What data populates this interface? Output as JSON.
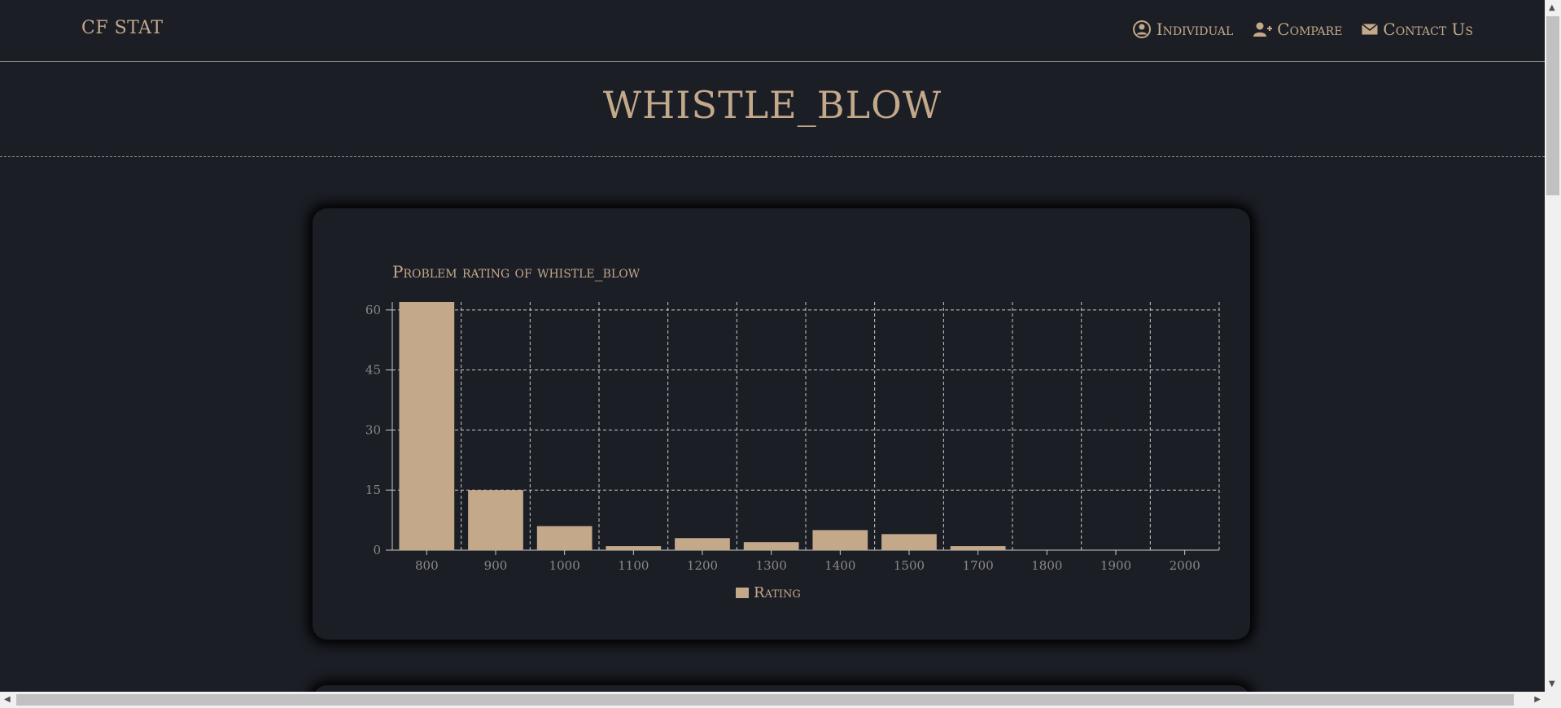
{
  "navbar": {
    "brand": "CF STAT",
    "links": [
      {
        "label": "Individual",
        "icon": "user-circle-icon"
      },
      {
        "label": "Compare",
        "icon": "user-plus-icon"
      },
      {
        "label": "Contact Us",
        "icon": "envelope-icon"
      }
    ]
  },
  "page_title": "WHISTLE_BLOW",
  "colors": {
    "background": "#1b1e25",
    "accent": "#c4a88a",
    "grid": "#c8c8c8",
    "tick_text": "#8a8a8a"
  },
  "chart_data": {
    "type": "bar",
    "title": "Problem rating of whistle_blow",
    "categories": [
      "800",
      "900",
      "1000",
      "1100",
      "1200",
      "1300",
      "1400",
      "1500",
      "1700",
      "1800",
      "1900",
      "2000"
    ],
    "series": [
      {
        "name": "Rating",
        "values": [
          62,
          15,
          6,
          1,
          3,
          2,
          5,
          4,
          1,
          0,
          0,
          0
        ]
      }
    ],
    "yticks": [
      0,
      15,
      30,
      45,
      60
    ],
    "ylim": [
      0,
      62
    ],
    "grid": true,
    "legend_position": "bottom-center"
  }
}
